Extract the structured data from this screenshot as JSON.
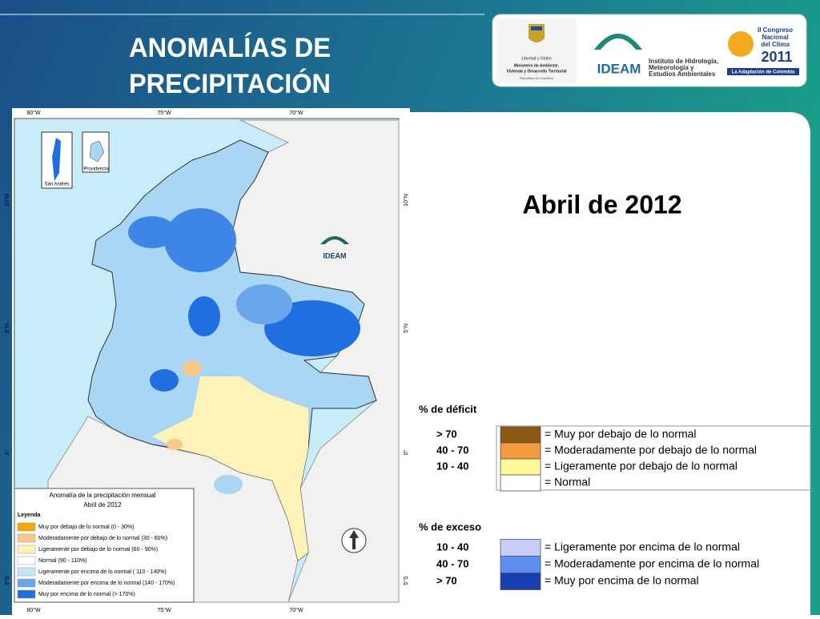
{
  "header": {
    "title_lines": [
      "ANOMALÍAS DE",
      "PRECIPITACIÓN"
    ]
  },
  "logos": {
    "government": [
      "Libertad y Orden",
      "Ministerio de Ambiente,",
      "Vivienda y Desarrollo Territorial",
      "República de Colombia"
    ],
    "ideam": {
      "name": "IDEAM",
      "lines": [
        "Instituto de Hidrología,",
        "Meteorología y",
        "Estudios Ambientales"
      ]
    },
    "congress": {
      "lines": [
        "II Congreso",
        "Nacional",
        "del Clima",
        "2011"
      ],
      "tagline": "La Adaptación de Colombia"
    }
  },
  "subtitle": "Abril de 2012",
  "map": {
    "lon_labels": [
      "80°W",
      "75°W",
      "70°W"
    ],
    "lat_labels": [
      "10°N",
      "5°N",
      "0°",
      "5°S"
    ],
    "insets": [
      "San Andrés",
      "Providencia"
    ],
    "watermark": "IDEAM",
    "legend": {
      "title_lines": [
        "Anomalía de la precipitación mensual",
        "Abril de 2012"
      ],
      "heading": "Leyenda",
      "items": [
        {
          "label": "Muy por debajo de lo normal (0 - 30%)",
          "color": "#f5a800"
        },
        {
          "label": "Moderadamente por debajo de lo normal (30 - 60%)",
          "color": "#f9c98a"
        },
        {
          "label": "Ligeramente por debajo de lo normal (60 - 90%)",
          "color": "#fdf2b8"
        },
        {
          "label": "Normal (90 - 110%)",
          "color": "#ffffff"
        },
        {
          "label": "Ligeramente por encima de lo normal ( 110 - 140%)",
          "color": "#c4e6f8"
        },
        {
          "label": "Moderadamente por encima de lo normal (140 - 170%)",
          "color": "#6aa6ea"
        },
        {
          "label": "Muy por encima de lo normal (> 170%)",
          "color": "#1f6fe0"
        }
      ]
    }
  },
  "deficit": {
    "heading": "% de déficit",
    "rows": [
      {
        "range": "> 70",
        "label": "= Muy por debajo de lo normal",
        "color": "#8b5a14"
      },
      {
        "range": "40 -  70",
        "label": "= Moderadamente por debajo de lo normal",
        "color": "#f39a3c"
      },
      {
        "range": "10 -  40",
        "label": "= Ligeramente por debajo de lo normal",
        "color": "#fff79a"
      },
      {
        "label": "= Normal",
        "color": "#ffffff"
      }
    ]
  },
  "excess": {
    "heading": "% de exceso",
    "rows": [
      {
        "range": "10 -  40",
        "label": "= Ligeramente por encima de lo normal",
        "color": "#c8cdf8"
      },
      {
        "range": "40 -  70",
        "label": "= Moderadamente por encima de lo normal",
        "color": "#5a8ef0"
      },
      {
        "range": "> 70",
        "label": "= Muy por encima de lo normal",
        "color": "#1a3fb0"
      }
    ]
  }
}
